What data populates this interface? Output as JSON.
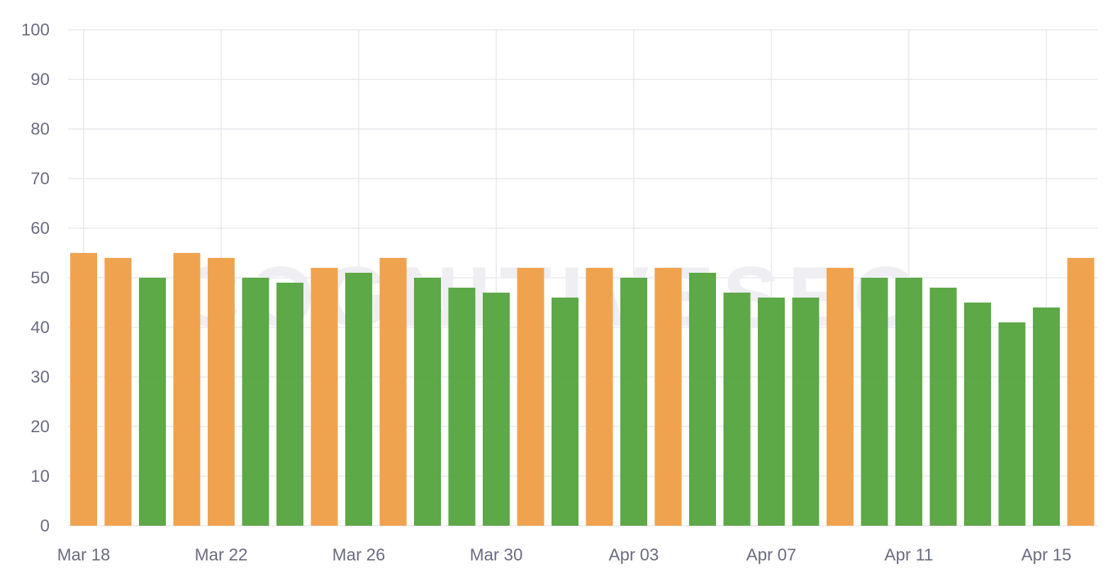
{
  "chart_data": {
    "type": "bar",
    "title": "",
    "xlabel": "",
    "ylabel": "",
    "ylim": [
      0,
      100
    ],
    "y_ticks": [
      "0",
      "10",
      "20",
      "30",
      "40",
      "50",
      "60",
      "70",
      "80",
      "90",
      "100"
    ],
    "x_ticks": [
      {
        "label": "Mar 18",
        "index": 0
      },
      {
        "label": "Mar 22",
        "index": 4
      },
      {
        "label": "Mar 26",
        "index": 8
      },
      {
        "label": "Mar 30",
        "index": 12
      },
      {
        "label": "Apr 03",
        "index": 16
      },
      {
        "label": "Apr 07",
        "index": 20
      },
      {
        "label": "Apr 11",
        "index": 24
      },
      {
        "label": "Apr 15",
        "index": 28
      }
    ],
    "grid": true,
    "watermark": "COGNITIVESEO",
    "colors": {
      "orange": "#f0a049",
      "green": "#58a541"
    },
    "categories": [
      "Mar 18",
      "Mar 19",
      "Mar 20",
      "Mar 21",
      "Mar 22",
      "Mar 23",
      "Mar 24",
      "Mar 25",
      "Mar 26",
      "Mar 27",
      "Mar 28",
      "Mar 29",
      "Mar 30",
      "Mar 31",
      "Apr 01",
      "Apr 02",
      "Apr 03",
      "Apr 04",
      "Apr 05",
      "Apr 06",
      "Apr 07",
      "Apr 08",
      "Apr 09",
      "Apr 10",
      "Apr 11",
      "Apr 12",
      "Apr 13",
      "Apr 14",
      "Apr 15",
      "Apr 16"
    ],
    "values": [
      55,
      54,
      50,
      55,
      54,
      50,
      49,
      52,
      51,
      54,
      50,
      48,
      47,
      52,
      46,
      52,
      50,
      52,
      51,
      47,
      46,
      46,
      52,
      50,
      50,
      48,
      45,
      41,
      44,
      54
    ],
    "bar_colors": [
      "orange",
      "orange",
      "green",
      "orange",
      "orange",
      "green",
      "green",
      "orange",
      "green",
      "orange",
      "green",
      "green",
      "green",
      "orange",
      "green",
      "orange",
      "green",
      "orange",
      "green",
      "green",
      "green",
      "green",
      "orange",
      "green",
      "green",
      "green",
      "green",
      "green",
      "green",
      "orange"
    ]
  }
}
